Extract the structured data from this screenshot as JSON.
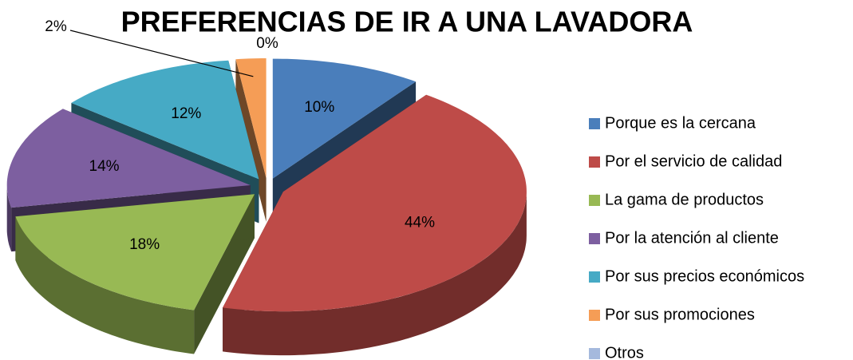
{
  "chart_data": {
    "type": "pie",
    "title": "PREFERENCIAS DE IR A UNA LAVADORA",
    "categories": [
      "Porque es la cercana",
      "Por el servicio de calidad",
      "La gama de productos",
      "Por la atención al cliente",
      "Por sus precios económicos",
      "Por sus promociones",
      "Otros"
    ],
    "values": [
      10,
      44,
      18,
      14,
      12,
      2,
      0
    ],
    "value_labels": [
      "10%",
      "44%",
      "18%",
      "14%",
      "12%",
      "2%",
      "0%"
    ],
    "colors": [
      "#4a7ebb",
      "#be4b48",
      "#98b954",
      "#7d5fa0",
      "#46aac5",
      "#f59d56",
      "#a5b9dd"
    ],
    "legend": "right"
  }
}
